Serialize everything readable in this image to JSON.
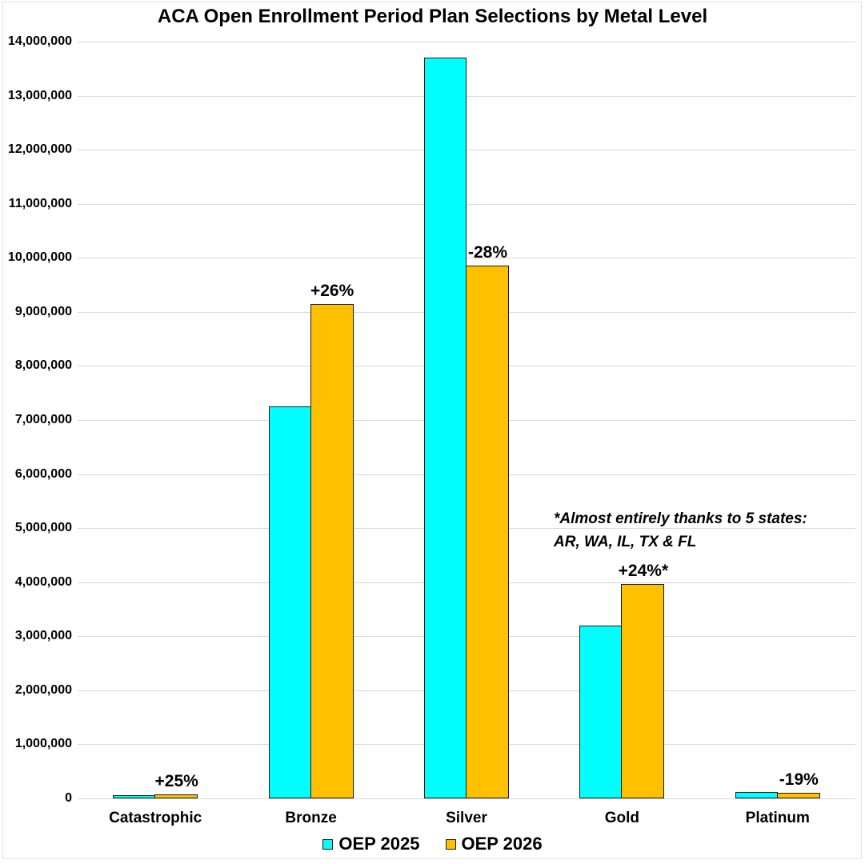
{
  "chart_data": {
    "type": "bar",
    "title": "ACA Open Enrollment Period Plan Selections by Metal Level",
    "categories": [
      "Catastrophic",
      "Bronze",
      "Silver",
      "Gold",
      "Platinum"
    ],
    "change_labels": [
      "+25%",
      "+26%",
      "-28%",
      "+24%*",
      "-19%"
    ],
    "series": [
      {
        "name": "OEP 2025",
        "color": "#00FFFF",
        "values": [
          60000,
          7250000,
          13700000,
          3200000,
          120000
        ]
      },
      {
        "name": "OEP 2026",
        "color": "#FFC000",
        "values": [
          75000,
          9140000,
          9860000,
          3970000,
          97000
        ]
      }
    ],
    "ylim": [
      0,
      14000000
    ],
    "ytick_step": 1000000,
    "grid": true,
    "legend_position": "bottom",
    "annotation": {
      "line1": "*Almost entirely thanks to 5 states:",
      "line2": "AR, WA, IL, TX & FL"
    }
  },
  "colors": {
    "series_2025": "#00FFFF",
    "series_2026": "#FFC000",
    "gridline": "#d9d9d9",
    "bar_border": "#1a1a1a",
    "text": "#000000",
    "background": "#ffffff"
  }
}
